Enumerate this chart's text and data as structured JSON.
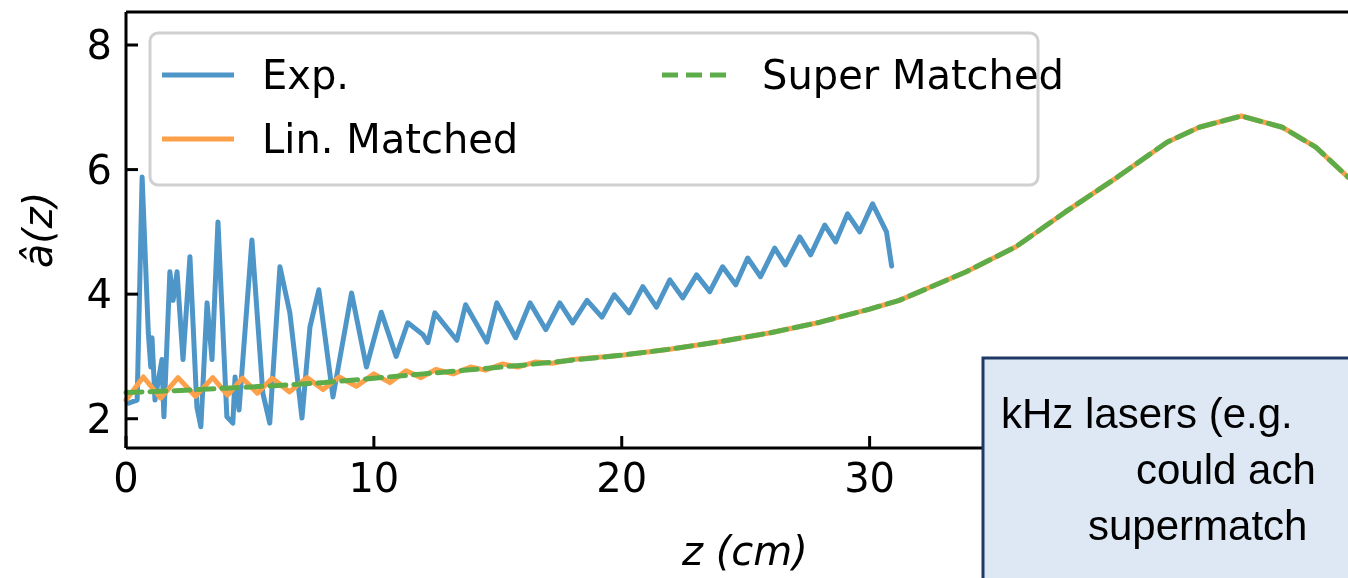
{
  "chart_data": {
    "type": "line",
    "xlabel": "z (cm)",
    "ylabel": "â(z)",
    "xlim": [
      0,
      49.3
    ],
    "ylim": [
      1.53,
      8.53
    ],
    "xticks": [
      0,
      10,
      20,
      30
    ],
    "yticks": [
      2,
      4,
      6,
      8
    ],
    "grid": false,
    "legend": "top left",
    "annotations": [
      "kHz lasers (e.g.",
      "could ach",
      "supermatch"
    ],
    "series": [
      {
        "name": "Exp.",
        "color": "#4f96c8",
        "line_style": "solid",
        "x": [
          0.1,
          0.45,
          0.65,
          0.9,
          1.0,
          1.05,
          1.17,
          1.45,
          1.53,
          1.77,
          1.9,
          2.06,
          2.3,
          2.58,
          2.86,
          3.02,
          3.27,
          3.47,
          3.71,
          4.07,
          4.31,
          4.4,
          4.56,
          5.08,
          5.52,
          5.8,
          6.21,
          6.61,
          7.1,
          7.42,
          7.78,
          8.35,
          9.1,
          9.7,
          10.3,
          10.9,
          11.37,
          11.98,
          12.18,
          12.46,
          13.35,
          13.7,
          14.56,
          14.96,
          15.72,
          16.3,
          16.94,
          17.5,
          18.02,
          18.6,
          19.2,
          19.7,
          20.3,
          20.85,
          21.4,
          21.94,
          22.46,
          23.02,
          23.55,
          24.07,
          24.6,
          25.08,
          25.6,
          26.17,
          26.6,
          27.18,
          27.62,
          28.19,
          28.63,
          29.11,
          29.6,
          30.12,
          30.68,
          30.89
        ],
        "values": [
          2.25,
          2.3,
          5.88,
          3.38,
          2.83,
          3.3,
          2.3,
          2.95,
          2.03,
          4.36,
          3.9,
          4.36,
          2.95,
          4.6,
          2.19,
          1.87,
          3.86,
          2.95,
          5.16,
          2.03,
          1.93,
          2.67,
          2.14,
          4.87,
          2.41,
          1.93,
          4.44,
          3.7,
          2.01,
          3.47,
          4.07,
          2.35,
          4.02,
          2.83,
          3.71,
          3.0,
          3.54,
          3.35,
          3.22,
          3.7,
          3.26,
          3.83,
          3.23,
          3.86,
          3.3,
          3.86,
          3.43,
          3.86,
          3.54,
          3.9,
          3.63,
          3.99,
          3.7,
          4.12,
          3.79,
          4.23,
          3.94,
          4.31,
          4.04,
          4.44,
          4.15,
          4.58,
          4.28,
          4.74,
          4.47,
          4.92,
          4.63,
          5.11,
          4.84,
          5.29,
          5.0,
          5.45,
          5.0,
          4.45
        ]
      },
      {
        "name": "Lin. Matched",
        "color": "#fda04a",
        "line_style": "solid",
        "x": [
          0,
          0.7,
          1.4,
          2.1,
          2.8,
          3.5,
          4.1,
          4.7,
          5.3,
          5.9,
          6.6,
          7.3,
          7.95,
          8.6,
          9.3,
          10,
          10.65,
          11.3,
          11.9,
          12.5,
          13.2,
          13.9,
          14.5,
          15.2,
          15.8,
          16.5,
          17.2,
          18,
          20,
          22,
          24,
          26,
          28,
          30,
          31.2,
          33.9,
          35.9,
          37.9,
          40,
          42,
          43.3,
          45,
          46.65,
          48,
          49.3
        ],
        "values": [
          2.3,
          2.67,
          2.33,
          2.66,
          2.36,
          2.66,
          2.38,
          2.65,
          2.41,
          2.65,
          2.43,
          2.66,
          2.47,
          2.67,
          2.52,
          2.72,
          2.58,
          2.77,
          2.66,
          2.79,
          2.72,
          2.83,
          2.78,
          2.88,
          2.83,
          2.91,
          2.89,
          2.95,
          3.02,
          3.12,
          3.24,
          3.38,
          3.55,
          3.76,
          3.9,
          4.36,
          4.76,
          5.32,
          5.88,
          6.44,
          6.68,
          6.86,
          6.68,
          6.36,
          5.88
        ]
      },
      {
        "name": "Super Matched",
        "color": "#5cad4a",
        "line_style": "dashed",
        "x": [
          0,
          2,
          4,
          6,
          8,
          10,
          12,
          14,
          16,
          18,
          20,
          22,
          24,
          26,
          28,
          30,
          31.2,
          33.9,
          35.9,
          37.9,
          40,
          42,
          43.3,
          45,
          46.65,
          48,
          49.3
        ],
        "values": [
          2.42,
          2.45,
          2.49,
          2.53,
          2.58,
          2.65,
          2.72,
          2.79,
          2.86,
          2.94,
          3.02,
          3.12,
          3.24,
          3.38,
          3.55,
          3.76,
          3.9,
          4.36,
          4.76,
          5.32,
          5.88,
          6.44,
          6.68,
          6.86,
          6.68,
          6.36,
          5.88
        ]
      }
    ]
  }
}
